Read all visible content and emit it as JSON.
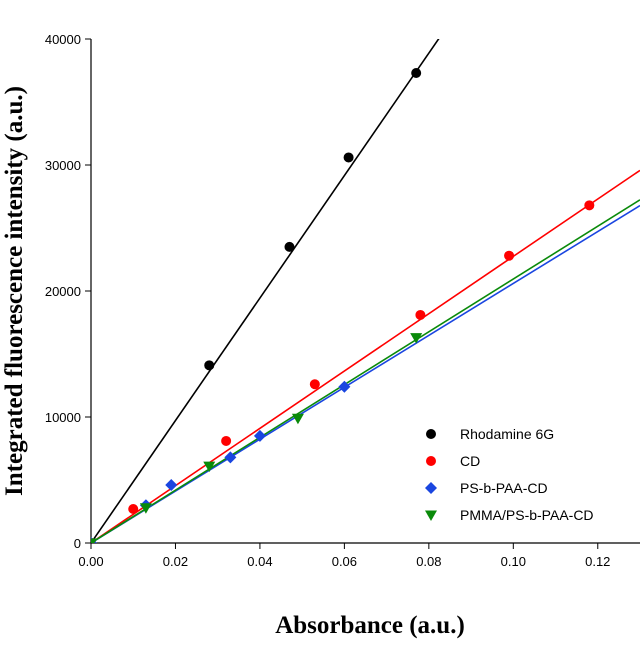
{
  "chart_data": {
    "type": "scatter",
    "title": "",
    "xlabel": "Absorbance (a.u.)",
    "ylabel": "Integrated fluorescence intensity (a.u.)",
    "xlim": [
      0.0,
      0.13
    ],
    "ylim": [
      0,
      40000
    ],
    "x_ticks": [
      0.0,
      0.02,
      0.04,
      0.06,
      0.08,
      0.1,
      0.12
    ],
    "x_tick_labels": [
      "0.00",
      "0.02",
      "0.04",
      "0.06",
      "0.08",
      "0.10",
      "0.12"
    ],
    "y_ticks": [
      0,
      10000,
      20000,
      30000,
      40000
    ],
    "y_tick_labels": [
      "0",
      "10000",
      "20000",
      "30000",
      "40000"
    ],
    "grid": false,
    "legend_position": "bottom-right",
    "series": [
      {
        "name": "Rhodamine 6G",
        "color": "#000000",
        "marker": "circle",
        "x": [
          0.0,
          0.028,
          0.047,
          0.061,
          0.077
        ],
        "y": [
          0,
          14100,
          23500,
          30600,
          37300
        ],
        "fit_slope": 486000
      },
      {
        "name": "CD",
        "color": "#ff0000",
        "marker": "circle",
        "x": [
          0.0,
          0.01,
          0.032,
          0.053,
          0.078,
          0.099,
          0.118
        ],
        "y": [
          0,
          2700,
          8100,
          12600,
          18100,
          22800,
          26800
        ],
        "fit_slope": 227500
      },
      {
        "name": "PS-b-PAA-CD",
        "color": "#1a46e0",
        "marker": "diamond",
        "x": [
          0.0,
          0.013,
          0.019,
          0.033,
          0.04,
          0.06
        ],
        "y": [
          0,
          3000,
          4600,
          6800,
          8500,
          12400
        ],
        "fit_slope": 206000
      },
      {
        "name": "PMMA/PS-b-PAA-CD",
        "color": "#0a8a0a",
        "marker": "triangle-down",
        "x": [
          0.0,
          0.013,
          0.028,
          0.049,
          0.077
        ],
        "y": [
          0,
          2800,
          6100,
          9900,
          16300
        ],
        "fit_slope": 209500
      }
    ]
  }
}
